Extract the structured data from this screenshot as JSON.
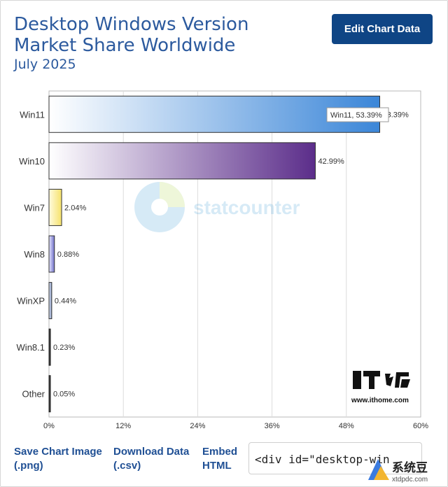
{
  "header": {
    "title": "Desktop Windows Version Market Share Worldwide",
    "subtitle": "July 2025",
    "edit_button": "Edit Chart Data"
  },
  "chart_data": {
    "type": "bar",
    "orientation": "horizontal",
    "categories": [
      "Win11",
      "Win10",
      "Win7",
      "Win8",
      "WinXP",
      "Win8.1",
      "Other"
    ],
    "values": [
      53.39,
      42.99,
      2.04,
      0.88,
      0.44,
      0.23,
      0.05
    ],
    "value_labels": [
      "53.39%",
      "42.99%",
      "2.04%",
      "0.88%",
      "0.44%",
      "0.23%",
      "0.05%"
    ],
    "x_ticks": [
      "0%",
      "12%",
      "24%",
      "36%",
      "48%",
      "60%"
    ],
    "x_tick_values": [
      0,
      12,
      24,
      36,
      48,
      60
    ],
    "xlim": [
      0,
      60
    ],
    "grid": true,
    "tooltip": "Win11, 53.39%",
    "bar_colors": [
      "#3b86d8",
      "#5b2d8a",
      "#f6e26a",
      "#6f6fc9",
      "#7d8fb8",
      "#2b2b2b",
      "#2b2b2b"
    ],
    "watermark": "statcounter"
  },
  "footer": {
    "save_image_line1": "Save Chart Image",
    "save_image_line2": "(.png)",
    "download_line1": "Download Data",
    "download_line2": "(.csv)",
    "embed_line1": "Embed",
    "embed_line2": "HTML",
    "embed_code": "<div id=\"desktop-win"
  },
  "overlays": {
    "ithome_url": "www.ithome.com",
    "xtdp_brand": "系统豆",
    "xtdp_url": "xtdpdc.com"
  }
}
